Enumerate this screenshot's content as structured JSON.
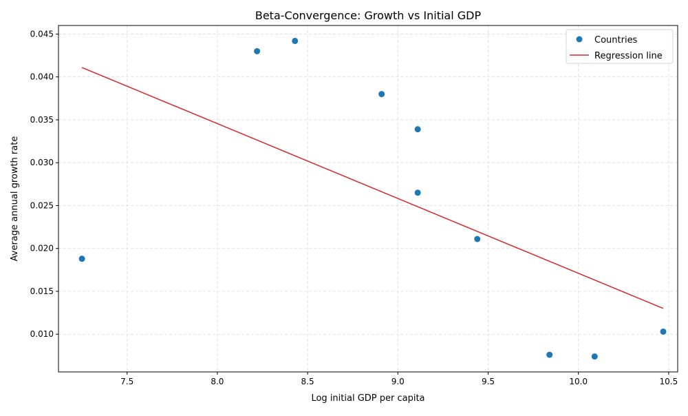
{
  "chart_data": {
    "type": "scatter",
    "title": "Beta-Convergence: Growth vs Initial GDP",
    "xlabel": "Log initial GDP per capita",
    "ylabel": "Average annual growth rate",
    "xlim": [
      7.12,
      10.55
    ],
    "ylim": [
      0.0056,
      0.046
    ],
    "x_ticks": [
      7.5,
      8.0,
      8.5,
      9.0,
      9.5,
      10.0,
      10.5
    ],
    "x_tick_labels": [
      "7.5",
      "8.0",
      "8.5",
      "9.0",
      "9.5",
      "10.0",
      "10.5"
    ],
    "y_ticks": [
      0.01,
      0.015,
      0.02,
      0.025,
      0.03,
      0.035,
      0.04,
      0.045
    ],
    "y_tick_labels": [
      "0.010",
      "0.015",
      "0.020",
      "0.025",
      "0.030",
      "0.035",
      "0.040",
      "0.045"
    ],
    "grid": true,
    "legend_position": "top-right",
    "series": [
      {
        "name": "Countries",
        "type": "scatter",
        "color": "#1f77b4",
        "points": [
          {
            "x": 7.25,
            "y": 0.0188
          },
          {
            "x": 8.22,
            "y": 0.043
          },
          {
            "x": 8.43,
            "y": 0.0442
          },
          {
            "x": 8.91,
            "y": 0.038
          },
          {
            "x": 9.11,
            "y": 0.0339
          },
          {
            "x": 9.11,
            "y": 0.0265
          },
          {
            "x": 9.44,
            "y": 0.0211
          },
          {
            "x": 9.84,
            "y": 0.0076
          },
          {
            "x": 10.09,
            "y": 0.0074
          },
          {
            "x": 10.47,
            "y": 0.0103
          }
        ]
      },
      {
        "name": "Regression line",
        "type": "line",
        "color": "#d62728",
        "points": [
          {
            "x": 7.25,
            "y": 0.0411
          },
          {
            "x": 10.47,
            "y": 0.013
          }
        ]
      }
    ]
  }
}
